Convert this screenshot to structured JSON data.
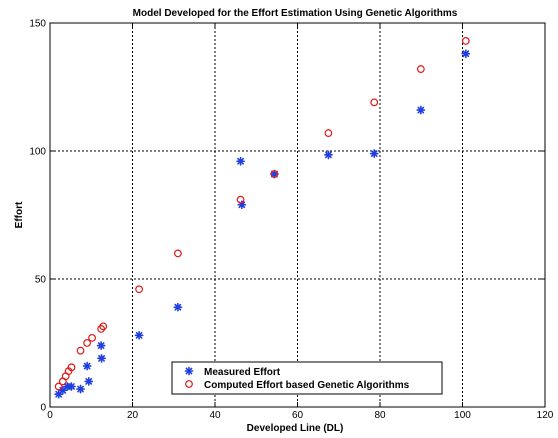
{
  "chart_data": {
    "type": "scatter",
    "title": "Model Developed for the Effort Estimation Using Genetic Algorithms",
    "xlabel": "Developed Line (DL)",
    "ylabel": "Effort",
    "xlim": [
      0,
      120
    ],
    "ylim": [
      0,
      150
    ],
    "xticks": [
      0,
      20,
      40,
      60,
      80,
      100,
      120
    ],
    "yticks": [
      0,
      50,
      100,
      150
    ],
    "grid": true,
    "legend_position": "bottom-center",
    "series": [
      {
        "name": "Measured Effort",
        "marker": "asterisk",
        "color": "#1f3fe0",
        "points": [
          {
            "x": 2.1,
            "y": 5
          },
          {
            "x": 3.1,
            "y": 6.5
          },
          {
            "x": 4.2,
            "y": 8
          },
          {
            "x": 5.2,
            "y": 8
          },
          {
            "x": 7.4,
            "y": 7
          },
          {
            "x": 9.4,
            "y": 10
          },
          {
            "x": 9.0,
            "y": 16
          },
          {
            "x": 12.5,
            "y": 19
          },
          {
            "x": 12.4,
            "y": 24
          },
          {
            "x": 21.6,
            "y": 28
          },
          {
            "x": 31.0,
            "y": 39
          },
          {
            "x": 46.5,
            "y": 79
          },
          {
            "x": 46.2,
            "y": 96
          },
          {
            "x": 54.4,
            "y": 91
          },
          {
            "x": 67.5,
            "y": 98.5
          },
          {
            "x": 78.6,
            "y": 99
          },
          {
            "x": 89.9,
            "y": 116
          },
          {
            "x": 100.8,
            "y": 138
          }
        ]
      },
      {
        "name": "Computed Effort based Genetic Algorithms",
        "marker": "circle",
        "color": "#e01818",
        "points": [
          {
            "x": 2.1,
            "y": 8
          },
          {
            "x": 3.1,
            "y": 10
          },
          {
            "x": 3.8,
            "y": 12
          },
          {
            "x": 4.5,
            "y": 14
          },
          {
            "x": 5.2,
            "y": 15.5
          },
          {
            "x": 7.4,
            "y": 22
          },
          {
            "x": 9.0,
            "y": 25
          },
          {
            "x": 10.2,
            "y": 27
          },
          {
            "x": 12.4,
            "y": 30.5
          },
          {
            "x": 12.9,
            "y": 31.5
          },
          {
            "x": 21.6,
            "y": 46
          },
          {
            "x": 31.0,
            "y": 60
          },
          {
            "x": 46.2,
            "y": 81
          },
          {
            "x": 54.4,
            "y": 91
          },
          {
            "x": 67.5,
            "y": 107
          },
          {
            "x": 78.6,
            "y": 119
          },
          {
            "x": 89.9,
            "y": 132
          },
          {
            "x": 100.8,
            "y": 143
          }
        ]
      }
    ]
  }
}
